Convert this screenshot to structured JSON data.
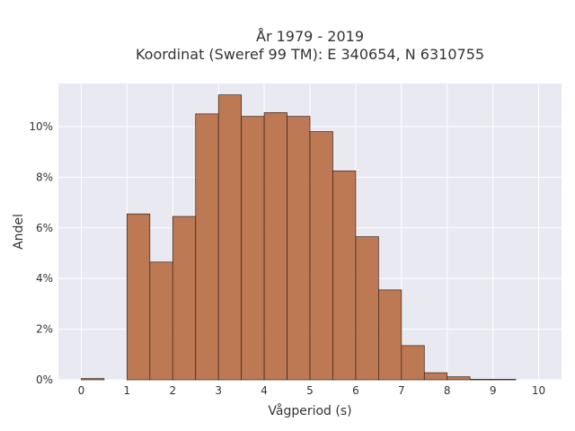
{
  "chart_data": {
    "type": "bar",
    "title": [
      "År 1979 - 2019",
      "Koordinat (Sweref 99 TM): E 340654, N 6310755"
    ],
    "xlabel": "Vågperiod (s)",
    "ylabel": "Andel",
    "xlim": [
      -0.5,
      10.5
    ],
    "ylim": [
      0,
      11.7
    ],
    "x_ticks": [
      0,
      1,
      2,
      3,
      4,
      5,
      6,
      7,
      8,
      9,
      10
    ],
    "y_ticks": [
      0,
      2,
      4,
      6,
      8,
      10
    ],
    "y_tick_suffix": "%",
    "grid": true,
    "bins": [
      {
        "start": 0.0,
        "end": 0.5,
        "value": 0.05
      },
      {
        "start": 0.5,
        "end": 1.0,
        "value": 0.0
      },
      {
        "start": 1.0,
        "end": 1.5,
        "value": 6.55
      },
      {
        "start": 1.5,
        "end": 2.0,
        "value": 4.65
      },
      {
        "start": 2.0,
        "end": 2.5,
        "value": 6.45
      },
      {
        "start": 2.5,
        "end": 3.0,
        "value": 10.5
      },
      {
        "start": 3.0,
        "end": 3.5,
        "value": 11.25
      },
      {
        "start": 3.5,
        "end": 4.0,
        "value": 10.4
      },
      {
        "start": 4.0,
        "end": 4.5,
        "value": 10.55
      },
      {
        "start": 4.5,
        "end": 5.0,
        "value": 10.4
      },
      {
        "start": 5.0,
        "end": 5.5,
        "value": 9.8
      },
      {
        "start": 5.5,
        "end": 6.0,
        "value": 8.25
      },
      {
        "start": 6.0,
        "end": 6.5,
        "value": 5.65
      },
      {
        "start": 6.5,
        "end": 7.0,
        "value": 3.55
      },
      {
        "start": 7.0,
        "end": 7.5,
        "value": 1.35
      },
      {
        "start": 7.5,
        "end": 8.0,
        "value": 0.28
      },
      {
        "start": 8.0,
        "end": 8.5,
        "value": 0.12
      },
      {
        "start": 8.5,
        "end": 9.0,
        "value": 0.02
      },
      {
        "start": 9.0,
        "end": 9.5,
        "value": 0.02
      },
      {
        "start": 9.5,
        "end": 10.0,
        "value": 0.0
      }
    ],
    "colors": {
      "bar_fill": "#b5693e",
      "bar_fill_opacity": 0.88,
      "bar_stroke": "#3a2418",
      "plot_background": "#e9e9f1",
      "grid": "#ffffff"
    }
  }
}
